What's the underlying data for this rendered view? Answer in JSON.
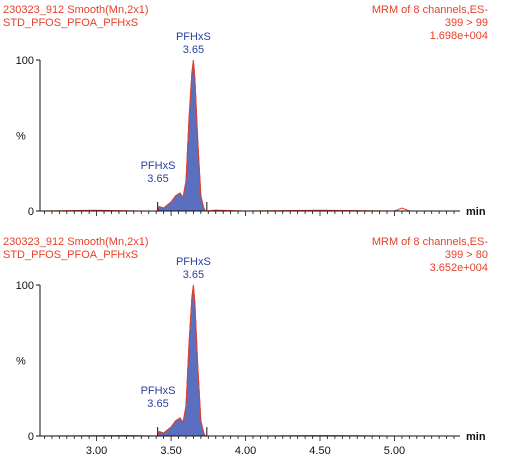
{
  "chart_data": [
    {
      "type": "line",
      "header_left": [
        "230323_912 Smooth(Mn,2x1)",
        "STD_PFOS_PFOA_PFHxS"
      ],
      "header_right": [
        "MRM of 8 channels,ES-",
        "399 > 99",
        "1.698e+004"
      ],
      "ylabel": "%",
      "xlabel": "min",
      "yticks": [
        "100",
        "0"
      ],
      "ylim": [
        0,
        100
      ],
      "xlim": [
        2.62,
        5.44
      ],
      "x": [
        2.62,
        3.0,
        3.3,
        3.41,
        3.42,
        3.45,
        3.5,
        3.53,
        3.56,
        3.58,
        3.6,
        3.62,
        3.64,
        3.65,
        3.66,
        3.68,
        3.7,
        3.72,
        3.73,
        3.74,
        3.8,
        4.0,
        4.5,
        5.0,
        5.05,
        5.1,
        5.44
      ],
      "y": [
        0,
        0.5,
        0,
        0,
        3,
        2,
        6,
        10,
        12,
        9,
        20,
        60,
        92,
        100,
        88,
        45,
        10,
        2,
        0,
        0,
        0.6,
        0,
        0.5,
        0,
        2,
        0,
        0
      ],
      "peaks": [
        {
          "name": "PFHxS",
          "rt": "3.65",
          "x": 3.65,
          "y": 100
        },
        {
          "name": "PFHxS",
          "rt": "3.65",
          "x": 3.56,
          "y": 12
        }
      ]
    },
    {
      "type": "line",
      "header_left": [
        "230323_912 Smooth(Mn,2x1)",
        "STD_PFOS_PFOA_PFHxS"
      ],
      "header_right": [
        "MRM of 8 channels,ES-",
        "399 > 80",
        "3.652e+004"
      ],
      "ylabel": "%",
      "xlabel": "min",
      "yticks": [
        "100",
        "0"
      ],
      "xticks": [
        "3.00",
        "3.50",
        "4.00",
        "4.50",
        "5.00"
      ],
      "ylim": [
        0,
        100
      ],
      "xlim": [
        2.62,
        5.44
      ],
      "x": [
        2.62,
        3.2,
        3.41,
        3.42,
        3.45,
        3.5,
        3.53,
        3.56,
        3.58,
        3.6,
        3.62,
        3.64,
        3.65,
        3.66,
        3.68,
        3.7,
        3.72,
        3.73,
        3.74,
        4.0,
        4.5,
        5.0,
        5.44
      ],
      "y": [
        0,
        0.3,
        0,
        3,
        2,
        6,
        10,
        12,
        9,
        20,
        60,
        92,
        100,
        88,
        45,
        10,
        2,
        0,
        0,
        0,
        0.3,
        0,
        0
      ],
      "peaks": [
        {
          "name": "PFHxS",
          "rt": "3.65",
          "x": 3.65,
          "y": 100
        },
        {
          "name": "PFHxS",
          "rt": "3.65",
          "x": 3.56,
          "y": 12
        }
      ]
    }
  ],
  "colors": {
    "header": "#e8402a",
    "trace": "#e8402a",
    "peak_fill": "#5b6fc0",
    "peak_label": "#2a3f9d",
    "axis": "#111111"
  }
}
